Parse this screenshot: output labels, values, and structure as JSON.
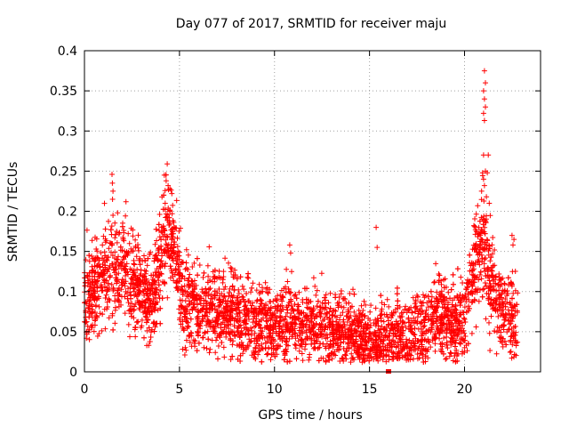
{
  "chart_data": {
    "type": "scatter",
    "title": "Day 077 of 2017, SRMTID for receiver maju",
    "xlabel": "GPS time / hours",
    "ylabel": "SRMTID / TECUs",
    "xlim": [
      0,
      24
    ],
    "ylim": [
      0,
      0.4
    ],
    "xticks": [
      0,
      5,
      10,
      15,
      20
    ],
    "xtick_labels": [
      "0",
      "5",
      "10",
      "15",
      "20"
    ],
    "yticks": [
      0,
      0.05,
      0.1,
      0.15,
      0.2,
      0.25,
      0.3,
      0.35,
      0.4
    ],
    "ytick_labels": [
      "0",
      "0.05",
      "0.1",
      "0.15",
      "0.2",
      "0.25",
      "0.3",
      "0.35",
      "0.4"
    ],
    "grid": true,
    "marker": "plus",
    "series_color": "#ff0000",
    "profile": [
      [
        0.0,
        0.09
      ],
      [
        0.5,
        0.1
      ],
      [
        1.0,
        0.12
      ],
      [
        1.5,
        0.13
      ],
      [
        2.0,
        0.13
      ],
      [
        2.5,
        0.12
      ],
      [
        3.0,
        0.1
      ],
      [
        3.5,
        0.09
      ],
      [
        4.0,
        0.13
      ],
      [
        4.3,
        0.18
      ],
      [
        4.7,
        0.15
      ],
      [
        5.0,
        0.11
      ],
      [
        5.5,
        0.08
      ],
      [
        6.0,
        0.08
      ],
      [
        7.0,
        0.08
      ],
      [
        8.0,
        0.07
      ],
      [
        9.0,
        0.06
      ],
      [
        10.0,
        0.06
      ],
      [
        11.0,
        0.06
      ],
      [
        12.0,
        0.055
      ],
      [
        13.0,
        0.055
      ],
      [
        14.0,
        0.05
      ],
      [
        15.0,
        0.04
      ],
      [
        15.5,
        0.035
      ],
      [
        16.0,
        0.04
      ],
      [
        17.0,
        0.045
      ],
      [
        18.0,
        0.05
      ],
      [
        18.5,
        0.07
      ],
      [
        19.0,
        0.07
      ],
      [
        19.5,
        0.06
      ],
      [
        20.0,
        0.07
      ],
      [
        20.3,
        0.12
      ],
      [
        20.7,
        0.14
      ],
      [
        21.0,
        0.16
      ],
      [
        21.3,
        0.12
      ],
      [
        21.7,
        0.09
      ],
      [
        22.0,
        0.08
      ],
      [
        22.5,
        0.07
      ],
      [
        22.8,
        0.06
      ]
    ],
    "spread": 0.028,
    "density_per_hour": 190,
    "outliers": [
      [
        1.45,
        0.246
      ],
      [
        1.47,
        0.235
      ],
      [
        1.5,
        0.225
      ],
      [
        1.48,
        0.215
      ],
      [
        1.5,
        0.195
      ],
      [
        4.2,
        0.245
      ],
      [
        4.3,
        0.238
      ],
      [
        4.4,
        0.232
      ],
      [
        4.5,
        0.228
      ],
      [
        4.6,
        0.222
      ],
      [
        4.25,
        0.21
      ],
      [
        4.5,
        0.2
      ],
      [
        10.8,
        0.158
      ],
      [
        10.85,
        0.148
      ],
      [
        10.9,
        0.125
      ],
      [
        15.35,
        0.18
      ],
      [
        15.4,
        0.155
      ],
      [
        21.05,
        0.375
      ],
      [
        21.1,
        0.36
      ],
      [
        21.0,
        0.35
      ],
      [
        21.05,
        0.34
      ],
      [
        21.1,
        0.33
      ],
      [
        21.0,
        0.322
      ],
      [
        21.05,
        0.313
      ],
      [
        21.0,
        0.27
      ],
      [
        21.25,
        0.27
      ],
      [
        21.1,
        0.25
      ],
      [
        20.95,
        0.248
      ],
      [
        21.2,
        0.248
      ],
      [
        21.0,
        0.24
      ],
      [
        21.05,
        0.232
      ],
      [
        20.9,
        0.225
      ],
      [
        21.15,
        0.218
      ],
      [
        21.3,
        0.21
      ],
      [
        22.5,
        0.17
      ],
      [
        22.6,
        0.165
      ],
      [
        22.55,
        0.158
      ]
    ],
    "zero_marker": [
      16.0,
      0.0
    ]
  }
}
